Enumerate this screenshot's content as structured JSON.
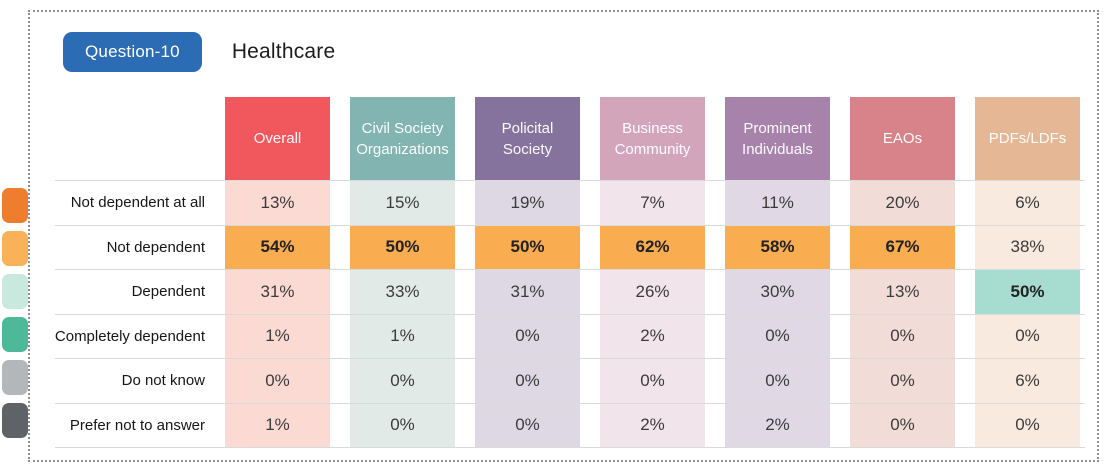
{
  "badge": {
    "label": "Question-10",
    "color": "#2b6cb4"
  },
  "title": "Healthcare",
  "legend_swatches": [
    {
      "name": "swatch-orange",
      "color": "#ef7d2e"
    },
    {
      "name": "swatch-light-orange",
      "color": "#f9b257"
    },
    {
      "name": "swatch-pale-mint",
      "color": "#c9e8de"
    },
    {
      "name": "swatch-teal-green",
      "color": "#4eb998"
    },
    {
      "name": "swatch-light-gray",
      "color": "#b4b7ba"
    },
    {
      "name": "swatch-dark-gray",
      "color": "#5f6367"
    }
  ],
  "highlight_colors": {
    "orange": "#f9ac50",
    "teal": "#a7dcd0"
  },
  "chart_data": {
    "type": "table",
    "title": "Healthcare",
    "question": "Question-10",
    "columns": [
      {
        "label": "Overall",
        "header_color": "#f0585e",
        "tint": "#fbdad4"
      },
      {
        "label": "Civil Society Organizations",
        "header_color": "#82b5b2",
        "tint": "#e2eae8"
      },
      {
        "label": "Policital Society",
        "header_color": "#86739d",
        "tint": "#ded8e4"
      },
      {
        "label": "Business Community",
        "header_color": "#d3a5bb",
        "tint": "#f1e4eb"
      },
      {
        "label": "Prominent Individuals",
        "header_color": "#a783ab",
        "tint": "#e0d9e5"
      },
      {
        "label": "EAOs",
        "header_color": "#d8838a",
        "tint": "#f2dcd8"
      },
      {
        "label": "PDFs/LDFs",
        "header_color": "#e5b794",
        "tint": "#f8eade"
      }
    ],
    "rows": [
      {
        "label": "Not dependent at all",
        "values": [
          "13%",
          "15%",
          "19%",
          "7%",
          "11%",
          "20%",
          "6%"
        ],
        "highlights": [
          null,
          null,
          null,
          null,
          null,
          null,
          null
        ]
      },
      {
        "label": "Not dependent",
        "values": [
          "54%",
          "50%",
          "50%",
          "62%",
          "58%",
          "67%",
          "38%"
        ],
        "highlights": [
          "orange",
          "orange",
          "orange",
          "orange",
          "orange",
          "orange",
          null
        ]
      },
      {
        "label": "Dependent",
        "values": [
          "31%",
          "33%",
          "31%",
          "26%",
          "30%",
          "13%",
          "50%"
        ],
        "highlights": [
          null,
          null,
          null,
          null,
          null,
          null,
          "teal"
        ]
      },
      {
        "label": "Completely dependent",
        "values": [
          "1%",
          "1%",
          "0%",
          "2%",
          "0%",
          "0%",
          "0%"
        ],
        "highlights": [
          null,
          null,
          null,
          null,
          null,
          null,
          null
        ]
      },
      {
        "label": "Do not know",
        "values": [
          "0%",
          "0%",
          "0%",
          "0%",
          "0%",
          "0%",
          "6%"
        ],
        "highlights": [
          null,
          null,
          null,
          null,
          null,
          null,
          null
        ]
      },
      {
        "label": "Prefer not to answer",
        "values": [
          "1%",
          "0%",
          "0%",
          "2%",
          "2%",
          "0%",
          "0%"
        ],
        "highlights": [
          null,
          null,
          null,
          null,
          null,
          null,
          null
        ]
      }
    ]
  }
}
